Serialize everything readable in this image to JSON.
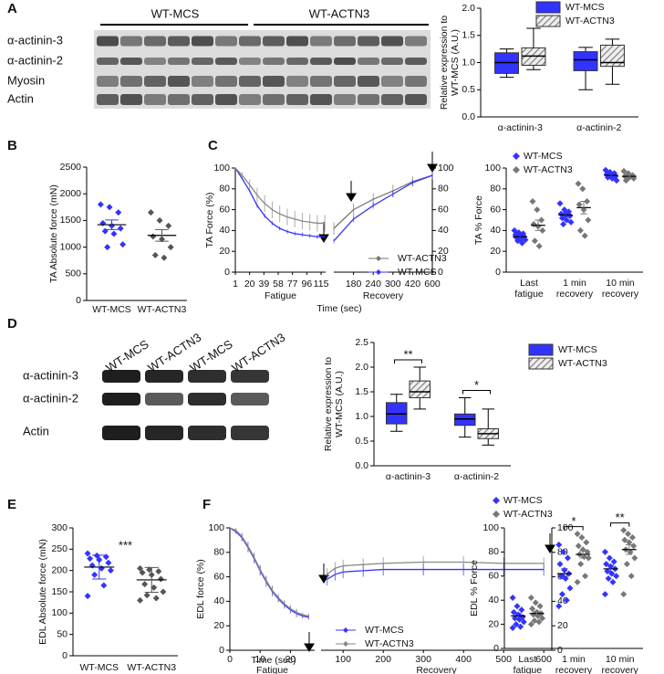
{
  "panel_labels": [
    "A",
    "B",
    "C",
    "D",
    "E",
    "F"
  ],
  "blots": [
    {
      "groups": [
        "WT-MCS",
        "WT-ACTN3"
      ],
      "rows": [
        "α-actinin-3",
        "α-actinin-2",
        "Myosin",
        "Actin"
      ]
    },
    {
      "lanes": [
        "WT-MCS",
        "WT-ACTN3",
        "WT-MCS",
        "WT-ACTN3"
      ],
      "rows": [
        "α-actinin-3",
        "α-actinin-2",
        "Actin"
      ]
    }
  ],
  "chart_data": [
    {
      "type": "box",
      "ylabel": [
        "Relative expression to",
        "WT-MCS (A.U.)"
      ],
      "categories": [
        "α-actinin-3",
        "α-actinin-2"
      ],
      "ylim": [
        0,
        2
      ],
      "yticks": [
        {
          "value": 0,
          "label": "0.0"
        },
        0.5,
        {
          "value": 1,
          "label": "1.0"
        },
        1.5,
        {
          "value": 2,
          "label": "2.0"
        }
      ],
      "series": [
        {
          "name": "WT-MCS",
          "color": "#3333ff",
          "values": [
            {
              "min": 0.73,
              "q1": 0.8,
              "median": 1.0,
              "q3": 1.18,
              "max": 1.25
            },
            {
              "min": 0.5,
              "q1": 0.85,
              "median": 1.05,
              "q3": 1.2,
              "max": 1.28
            }
          ]
        },
        {
          "name": "WT-ACTN3",
          "color": "#999999",
          "pattern": "hatch",
          "values": [
            {
              "min": 0.87,
              "q1": 0.95,
              "median": 1.12,
              "q3": 1.27,
              "max": 1.63
            },
            {
              "min": 0.6,
              "q1": 0.93,
              "median": 1.0,
              "q3": 1.32,
              "max": 1.43
            }
          ]
        }
      ]
    },
    {
      "type": "strip",
      "ylabel": "TA Absolute force (mN)",
      "categories": [
        "WT-MCS",
        "WT-ACTN3"
      ],
      "colors": [
        "#3333ff",
        "#555555"
      ],
      "values": [
        [
          1800,
          1750,
          1650,
          1450,
          1400,
          1350,
          1300,
          1250,
          1050,
          1000
        ],
        [
          1650,
          1500,
          1400,
          1200,
          1150,
          1000,
          850,
          800
        ]
      ],
      "means": [
        1420,
        1220
      ],
      "errors": [
        90,
        110
      ],
      "ylim": [
        0,
        2500
      ],
      "yticks": [
        0,
        500,
        1000,
        1500,
        2000,
        2500
      ]
    },
    {
      "type": "line",
      "ylabel": "TA Force (%)",
      "xlabel": "Fatigue",
      "x": [
        1,
        10,
        20,
        30,
        40,
        50,
        60,
        70,
        80,
        90,
        100,
        110,
        120
      ],
      "xlim": [
        1,
        121
      ],
      "xticks": [
        1,
        20,
        39,
        58,
        77,
        96,
        115
      ],
      "ylim": [
        0,
        100
      ],
      "yticks": [
        0,
        20,
        40,
        60,
        80,
        100
      ],
      "series": [
        {
          "name": "WT-MCS",
          "color": "#3333ff",
          "values": [
            100,
            90,
            78,
            64,
            54,
            47,
            42,
            39,
            37,
            36,
            35,
            34,
            34
          ],
          "errors": [
            0,
            1,
            1,
            2,
            2,
            2,
            2,
            2,
            2,
            2,
            2,
            2,
            2
          ]
        },
        {
          "name": "WT-ACTN3",
          "color": "#888888",
          "values": [
            100,
            93,
            84,
            74,
            66,
            60,
            56,
            53,
            51,
            49,
            48,
            47,
            47
          ],
          "errors": [
            0,
            3,
            5,
            7,
            8,
            8,
            8,
            8,
            8,
            8,
            8,
            8,
            8
          ]
        }
      ]
    },
    {
      "type": "line",
      "xlabel": "Recovery",
      "time_label": "Time (sec)",
      "categories": [
        null,
        "180",
        "240",
        "300",
        "420",
        "600"
      ],
      "y2lim": [
        0,
        100
      ],
      "y2ticks": [
        0,
        20,
        40,
        60,
        80,
        100
      ],
      "series": [
        {
          "name": "WT-ACTN3",
          "color": "#777777",
          "axis": "y2",
          "values": [
            42,
            60,
            70,
            78,
            87,
            93
          ],
          "errors": [
            6,
            6,
            6,
            6,
            5,
            4
          ]
        },
        {
          "name": "WT-MCS",
          "color": "#3333ff",
          "axis": "y2",
          "values": [
            30,
            51,
            64,
            75,
            86,
            93
          ],
          "errors": [
            2,
            3,
            3,
            3,
            3,
            2
          ]
        }
      ]
    },
    {
      "type": "strip",
      "ylabel": "TA % Force",
      "categories": [
        [
          "Last",
          "fatigue"
        ],
        [
          "1 min",
          "recovery"
        ],
        [
          "10 min",
          "recovery"
        ]
      ],
      "ylim": [
        0,
        100
      ],
      "yticks": [
        0,
        20,
        40,
        60,
        80,
        100
      ],
      "series": [
        {
          "name": "WT-MCS",
          "color": "#3333ff",
          "values": [
            [
              40,
              38,
              37,
              36,
              35,
              34,
              33,
              32,
              31,
              30,
              28
            ],
            [
              66,
              60,
              58,
              56,
              55,
              54,
              52,
              50,
              48,
              46
            ],
            [
              98,
              96,
              95,
              94,
              93,
              92,
              91,
              90,
              88
            ]
          ],
          "means": [
            34,
            55,
            93
          ],
          "errors": [
            1.2,
            2,
            1
          ]
        },
        {
          "name": "WT-ACTN3",
          "color": "#777777",
          "values": [
            [
              68,
              60,
              50,
              46,
              44,
              40,
              30,
              25
            ],
            [
              85,
              80,
              68,
              65,
              60,
              50,
              40,
              35
            ],
            [
              97,
              95,
              93,
              92,
              91,
              90,
              88
            ]
          ],
          "means": [
            45,
            62,
            92
          ],
          "errors": [
            5,
            6,
            1
          ]
        }
      ]
    },
    {
      "type": "box",
      "ylabel": [
        "Relative expression to",
        "WT-MCS (A.U.)"
      ],
      "categories": [
        "α-actinin-3",
        "α-actinin-2"
      ],
      "ylim": [
        0,
        2.5
      ],
      "yticks": [
        {
          "value": 0,
          "label": "0.0"
        },
        0.5,
        {
          "value": 1,
          "label": "1.0"
        },
        1.5,
        {
          "value": 2,
          "label": "2.0"
        },
        2.5
      ],
      "series": [
        {
          "name": "WT-MCS",
          "color": "#3333ff",
          "values": [
            {
              "min": 0.7,
              "q1": 0.85,
              "median": 1.05,
              "q3": 1.28,
              "max": 1.45
            },
            {
              "min": 0.58,
              "q1": 0.82,
              "median": 0.95,
              "q3": 1.05,
              "max": 1.38
            }
          ]
        },
        {
          "name": "WT-ACTN3",
          "color": "#999999",
          "pattern": "hatch",
          "values": [
            {
              "min": 1.15,
              "q1": 1.38,
              "median": 1.5,
              "q3": 1.72,
              "max": 2.0
            },
            {
              "min": 0.42,
              "q1": 0.55,
              "median": 0.65,
              "q3": 0.75,
              "max": 1.15
            }
          ]
        }
      ],
      "annotations": [
        {
          "text": "**",
          "category": 0
        },
        {
          "text": "*",
          "category": 1
        }
      ]
    },
    {
      "type": "strip",
      "ylabel": "EDL Absolute force (mN)",
      "categories": [
        "WT-MCS",
        "WT-ACTN3"
      ],
      "colors": [
        "#3333ff",
        "#555555"
      ],
      "values": [
        [
          240,
          235,
          232,
          228,
          225,
          218,
          212,
          205,
          200,
          190,
          165,
          140
        ],
        [
          205,
          202,
          198,
          195,
          190,
          180,
          168,
          160,
          150,
          142,
          135,
          130
        ]
      ],
      "means": [
        208,
        178
      ],
      "errors": [
        28,
        29
      ],
      "ylim": [
        0,
        300
      ],
      "yticks": [
        0,
        50,
        100,
        150,
        200,
        250,
        300
      ],
      "annotations": [
        {
          "text": "***"
        }
      ]
    },
    {
      "type": "line",
      "ylabel": "EDL force (%)",
      "xlabel": "Fatigue",
      "x": [
        0,
        2,
        4,
        6,
        8,
        10,
        12,
        14,
        16,
        18,
        20,
        22,
        24,
        26
      ],
      "xlim": [
        0,
        28
      ],
      "xticks": [
        0,
        10,
        20
      ],
      "ylim": [
        0,
        100
      ],
      "yticks": [
        0,
        20,
        40,
        60,
        80,
        100
      ],
      "series": [
        {
          "name": "WT-MCS",
          "color": "#3333ff",
          "values": [
            100,
            97,
            92,
            84,
            75,
            65,
            56,
            48,
            42,
            37,
            33,
            30,
            28,
            27
          ],
          "errors": [
            0,
            2,
            3,
            4,
            4,
            4,
            4,
            4,
            3,
            3,
            3,
            3,
            2,
            2
          ]
        },
        {
          "name": "WT-ACTN3",
          "color": "#888888",
          "values": [
            100,
            98,
            93,
            85,
            76,
            66,
            57,
            49,
            43,
            38,
            34,
            31,
            29,
            28
          ],
          "errors": [
            0,
            2,
            3,
            4,
            4,
            4,
            4,
            4,
            3,
            3,
            3,
            3,
            2,
            2
          ]
        }
      ]
    },
    {
      "type": "line",
      "xlabel": "Recovery",
      "time_label": "Time (sec)",
      "x": [
        60,
        80,
        100,
        150,
        200,
        300,
        400,
        500,
        600
      ],
      "xlim": [
        45,
        620
      ],
      "xticks": [
        100,
        200,
        300,
        400,
        500,
        600
      ],
      "y2lim": [
        0,
        100
      ],
      "y2ticks": [
        0,
        20,
        40,
        60,
        80,
        100
      ],
      "series": [
        {
          "name": "WT-MCS",
          "color": "#3333ff",
          "axis": "y2",
          "values": [
            58,
            62,
            64,
            65,
            66,
            66,
            66,
            66,
            66
          ],
          "errors": [
            5,
            5,
            5,
            5,
            5,
            5,
            5,
            5,
            5
          ]
        },
        {
          "name": "WT-ACTN3",
          "color": "#888888",
          "axis": "y2",
          "values": [
            62,
            67,
            69,
            70,
            71,
            72,
            72,
            71,
            71
          ],
          "errors": [
            5,
            5,
            5,
            5,
            5,
            5,
            5,
            5,
            5
          ]
        }
      ]
    },
    {
      "type": "strip",
      "ylabel": "EDL % Force",
      "categories": [
        [
          "Last",
          "fatigue"
        ],
        [
          "1 min",
          "recovery"
        ],
        [
          "10 min",
          "recovery"
        ]
      ],
      "ylim": [
        0,
        100
      ],
      "yticks": [
        0,
        20,
        40,
        60,
        80,
        100
      ],
      "series": [
        {
          "name": "WT-MCS",
          "color": "#3333ff",
          "values": [
            [
              42,
              35,
              32,
              30,
              28,
              26,
              25,
              24,
              22,
              20,
              18,
              17
            ],
            [
              86,
              80,
              75,
              70,
              65,
              62,
              60,
              58,
              50,
              45,
              40,
              35
            ],
            [
              80,
              75,
              72,
              70,
              68,
              66,
              64,
              62,
              60,
              58,
              55,
              45
            ]
          ],
          "means": [
            27,
            62,
            66
          ],
          "errors": [
            2,
            4,
            3
          ]
        },
        {
          "name": "WT-ACTN3",
          "color": "#777777",
          "values": [
            [
              42,
              38,
              35,
              33,
              30,
              29,
              28,
              27,
              25,
              23,
              22,
              20
            ],
            [
              95,
              92,
              88,
              85,
              82,
              80,
              78,
              76,
              75,
              70,
              60,
              55
            ],
            [
              98,
              95,
              92,
              90,
              88,
              85,
              82,
              80,
              75,
              70,
              60,
              45
            ]
          ],
          "means": [
            29,
            78,
            82
          ],
          "errors": [
            2,
            3,
            4
          ]
        }
      ],
      "annotations": [
        {
          "text": "*",
          "category": 1
        },
        {
          "text": "**",
          "category": 2
        }
      ]
    }
  ]
}
